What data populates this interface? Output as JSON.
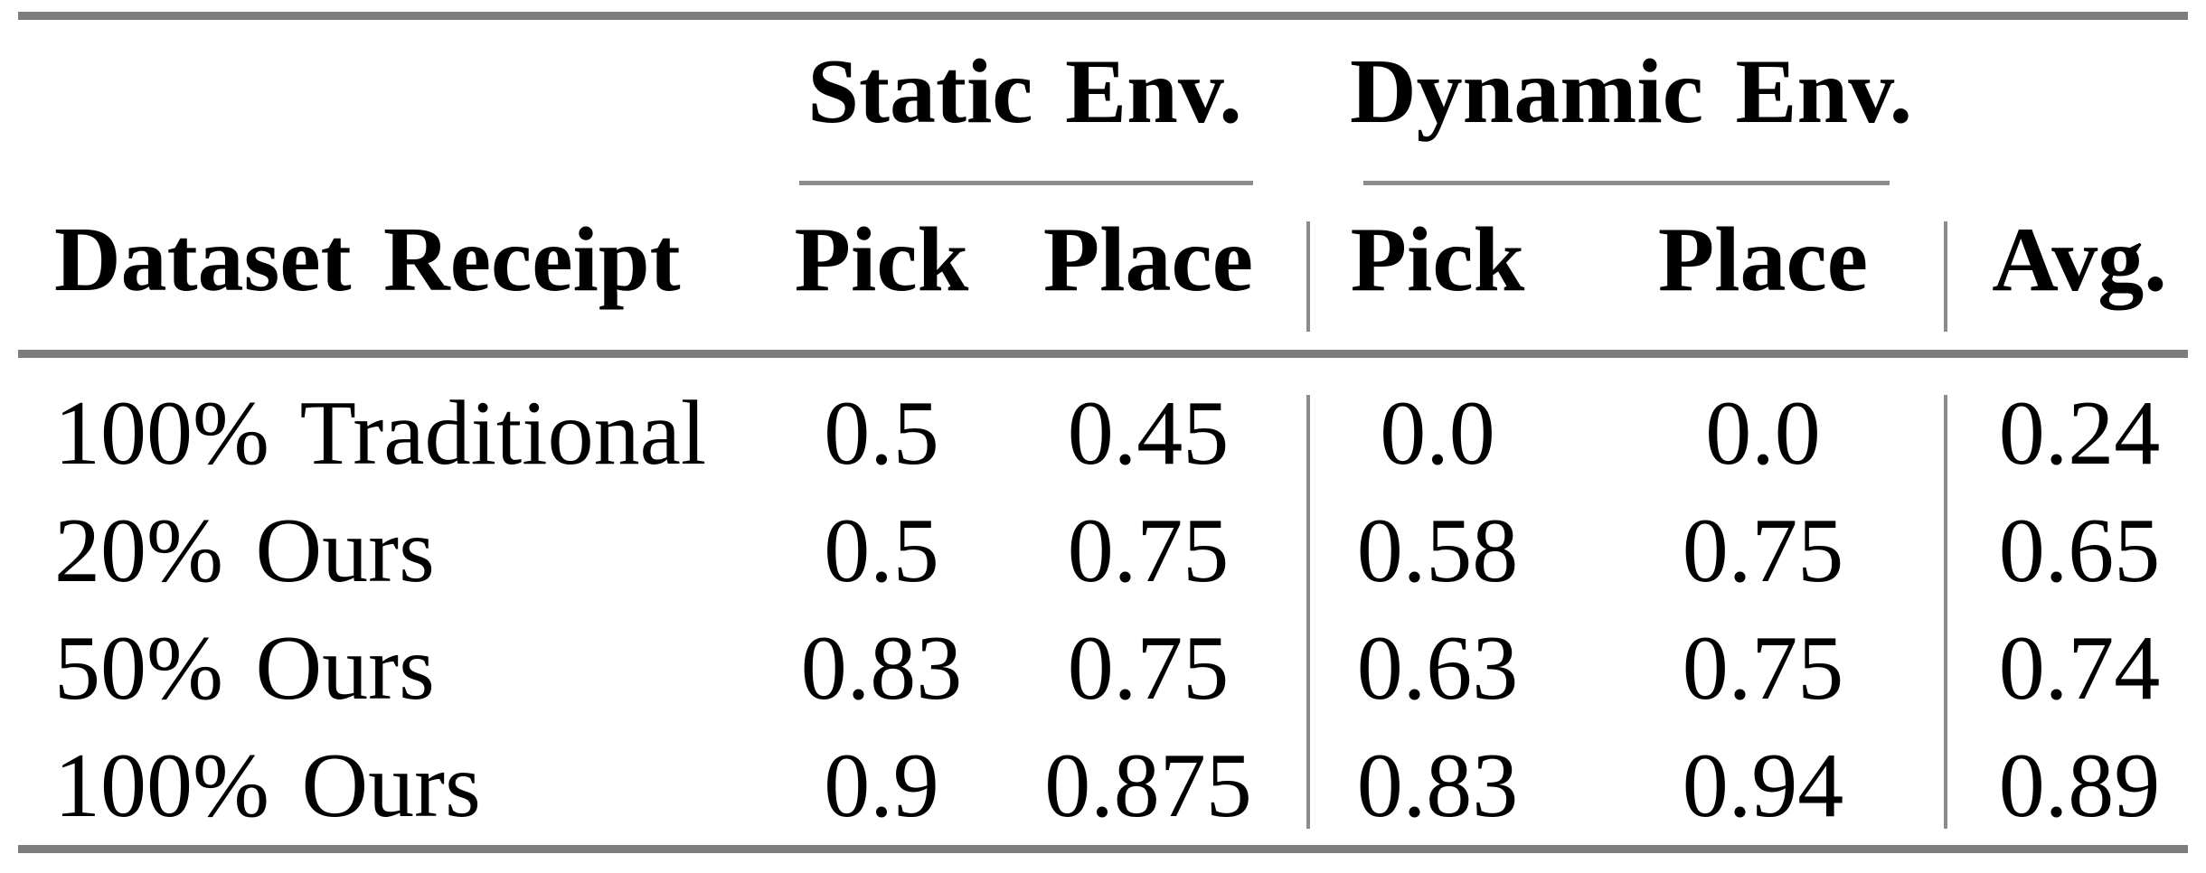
{
  "colors": {
    "background": "#ffffff",
    "text": "#000000",
    "rule_thick": "#7d7d7d",
    "rule_thin": "#8c8c8c"
  },
  "table": {
    "row_header_label": "Dataset Receipt",
    "avg_label": "Avg.",
    "groups": [
      {
        "label": "Static Env.",
        "columns": [
          "Pick",
          "Place"
        ]
      },
      {
        "label": "Dynamic Env.",
        "columns": [
          "Pick",
          "Place"
        ]
      }
    ],
    "rows": [
      {
        "label": "100% Traditional",
        "cells": [
          "0.5",
          "0.45",
          "0.0",
          "0.0",
          "0.24"
        ]
      },
      {
        "label": "20% Ours",
        "cells": [
          "0.5",
          "0.75",
          "0.58",
          "0.75",
          "0.65"
        ]
      },
      {
        "label": "50% Ours",
        "cells": [
          "0.83",
          "0.75",
          "0.63",
          "0.75",
          "0.74"
        ]
      },
      {
        "label": "100% Ours",
        "cells": [
          "0.9",
          "0.875",
          "0.83",
          "0.94",
          "0.89"
        ]
      }
    ]
  }
}
